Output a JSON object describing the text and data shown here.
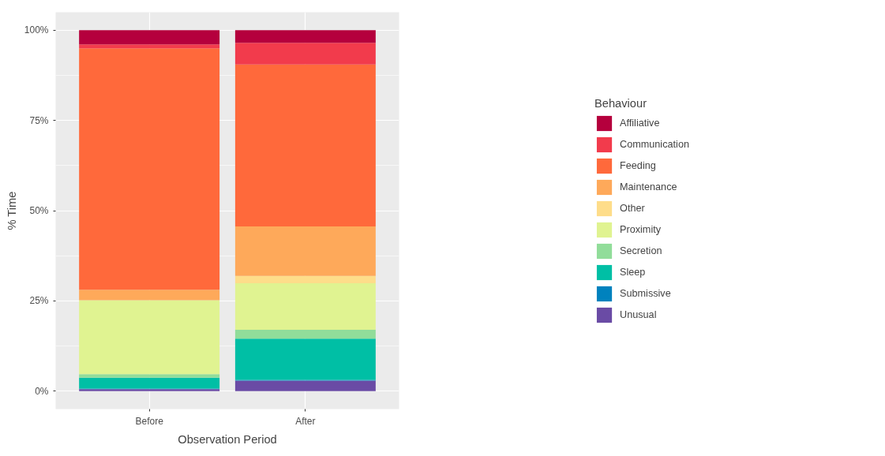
{
  "chart_data": {
    "type": "bar",
    "stacked": true,
    "xlabel": "Observation Period",
    "ylabel": "% Time",
    "legend_title": "Behaviour",
    "legend": "right",
    "grid": true,
    "categories": [
      "Before",
      "After"
    ],
    "ylim": [
      -5,
      105
    ],
    "yticks": [
      {
        "value": 0,
        "label": "0%"
      },
      {
        "value": 25,
        "label": "25%"
      },
      {
        "value": 50,
        "label": "50%"
      },
      {
        "value": 75,
        "label": "75%"
      },
      {
        "value": 100,
        "label": "100%"
      }
    ],
    "series": [
      {
        "name": "Unusual",
        "color": "#6a4ba5",
        "values": [
          0.5,
          2.9
        ]
      },
      {
        "name": "Submissive",
        "color": "#0082be",
        "values": [
          0.2,
          0.2
        ]
      },
      {
        "name": "Sleep",
        "color": "#00bfa5",
        "values": [
          3.0,
          11.4
        ]
      },
      {
        "name": "Secretion",
        "color": "#91dd9a",
        "values": [
          1.0,
          2.5
        ]
      },
      {
        "name": "Proximity",
        "color": "#e0f391",
        "values": [
          20.5,
          12.9
        ]
      },
      {
        "name": "Other",
        "color": "#fedd8a",
        "values": [
          0,
          2.0
        ]
      },
      {
        "name": "Maintenance",
        "color": "#fea95a",
        "values": [
          2.9,
          13.7
        ]
      },
      {
        "name": "Feeding",
        "color": "#ff693b",
        "values": [
          66.9,
          44.9
        ]
      },
      {
        "name": "Communication",
        "color": "#f23b4c",
        "values": [
          1.1,
          6.0
        ]
      },
      {
        "name": "Affiliative",
        "color": "#b5003d",
        "values": [
          3.9,
          3.5
        ]
      }
    ]
  }
}
